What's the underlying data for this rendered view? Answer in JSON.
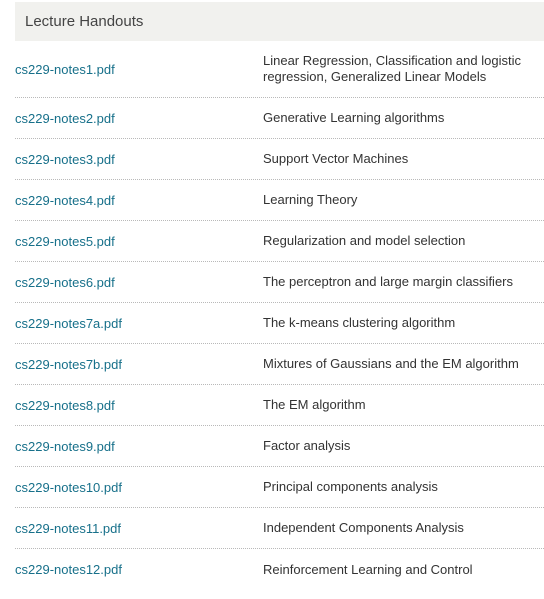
{
  "header": {
    "title": "Lecture Handouts"
  },
  "handouts": [
    {
      "file": "cs229-notes1.pdf",
      "description": "Linear Regression, Classification and logistic regression, Generalized Linear Models"
    },
    {
      "file": "cs229-notes2.pdf",
      "description": "Generative Learning algorithms"
    },
    {
      "file": "cs229-notes3.pdf",
      "description": "Support Vector Machines"
    },
    {
      "file": "cs229-notes4.pdf",
      "description": "Learning Theory"
    },
    {
      "file": "cs229-notes5.pdf",
      "description": "Regularization and model selection"
    },
    {
      "file": "cs229-notes6.pdf",
      "description": "The perceptron and large margin classifiers"
    },
    {
      "file": "cs229-notes7a.pdf",
      "description": "The k-means clustering algorithm"
    },
    {
      "file": "cs229-notes7b.pdf",
      "description": "Mixtures of Gaussians and the EM algorithm"
    },
    {
      "file": "cs229-notes8.pdf",
      "description": "The EM algorithm"
    },
    {
      "file": "cs229-notes9.pdf",
      "description": "Factor analysis"
    },
    {
      "file": "cs229-notes10.pdf",
      "description": "Principal components analysis"
    },
    {
      "file": "cs229-notes11.pdf",
      "description": "Independent Components Analysis"
    },
    {
      "file": "cs229-notes12.pdf",
      "description": "Reinforcement Learning and Control"
    }
  ],
  "colors": {
    "link": "#17708a",
    "header_bg": "#f1f1ee",
    "divider": "#b9b9b9"
  }
}
